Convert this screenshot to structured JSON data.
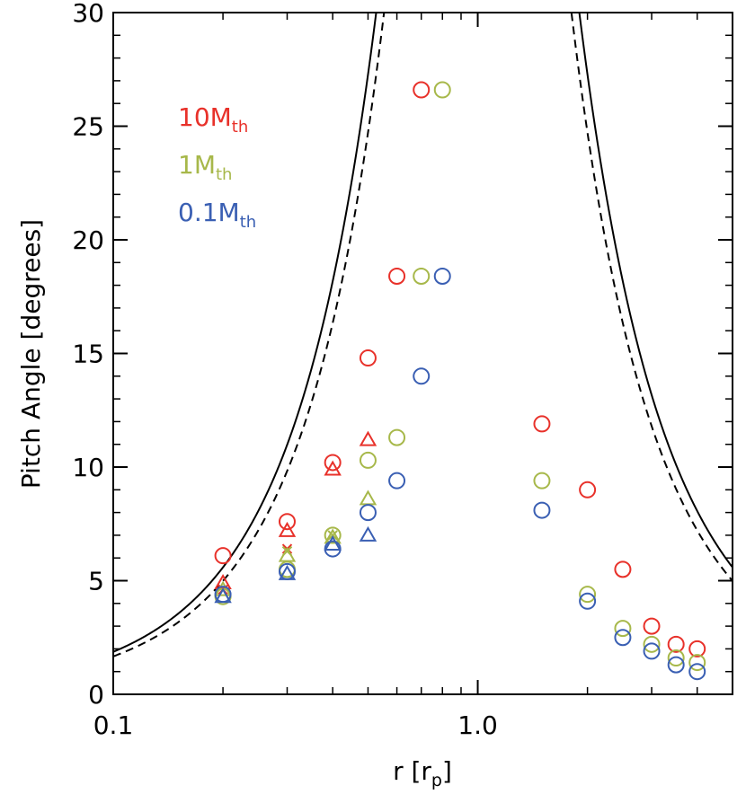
{
  "chart_data": {
    "type": "scatter",
    "xscale": "log",
    "xlim": [
      0.1,
      5
    ],
    "ylim": [
      0,
      30
    ],
    "xlabel": "r [r",
    "xlabel_sub": "p",
    "xlabel_end": "]",
    "ylabel": "Pitch Angle [degrees]",
    "x_ticks": [
      {
        "value": 0.1,
        "label": "0.1"
      },
      {
        "value": 1.0,
        "label": "1.0"
      }
    ],
    "y_ticks": [
      {
        "value": 0,
        "label": "0"
      },
      {
        "value": 5,
        "label": "5"
      },
      {
        "value": 10,
        "label": "10"
      },
      {
        "value": 15,
        "label": "15"
      },
      {
        "value": 20,
        "label": "20"
      },
      {
        "value": 25,
        "label": "25"
      },
      {
        "value": 30,
        "label": "30"
      }
    ],
    "legend": [
      {
        "main": "10M",
        "sub": "th",
        "color": "#e8312a"
      },
      {
        "main": "1M",
        "sub": "th",
        "color": "#a7b84a"
      },
      {
        "main": "0.1M",
        "sub": "th",
        "color": "#3a5fb3"
      }
    ],
    "series": [
      {
        "name": "10Mth",
        "marker": "circle",
        "color": "#e8312a",
        "points": [
          [
            0.2,
            6.1
          ],
          [
            0.3,
            7.6
          ],
          [
            0.4,
            10.2
          ],
          [
            0.5,
            14.8
          ],
          [
            0.6,
            18.4
          ],
          [
            0.7,
            26.6
          ],
          [
            1.5,
            11.9
          ],
          [
            2.0,
            9.0
          ],
          [
            2.5,
            5.5
          ],
          [
            3.0,
            3.0
          ],
          [
            3.5,
            2.2
          ],
          [
            4.0,
            2.0
          ]
        ]
      },
      {
        "name": "10Mth",
        "marker": "triangle",
        "color": "#e8312a",
        "points": [
          [
            0.2,
            4.9
          ],
          [
            0.3,
            7.2
          ],
          [
            0.4,
            9.9
          ],
          [
            0.5,
            11.2
          ]
        ]
      },
      {
        "name": "10Mth",
        "marker": "cross",
        "color": "#e8312a",
        "points": [
          [
            0.2,
            4.6
          ],
          [
            0.3,
            6.4
          ]
        ]
      },
      {
        "name": "1Mth",
        "marker": "circle",
        "color": "#a7b84a",
        "points": [
          [
            0.2,
            4.3
          ],
          [
            0.3,
            5.5
          ],
          [
            0.4,
            7.0
          ],
          [
            0.5,
            10.3
          ],
          [
            0.6,
            11.3
          ],
          [
            0.7,
            18.4
          ],
          [
            0.8,
            26.6
          ],
          [
            1.5,
            9.4
          ],
          [
            2.0,
            4.4
          ],
          [
            2.5,
            2.9
          ],
          [
            3.0,
            2.2
          ],
          [
            3.5,
            1.6
          ],
          [
            4.0,
            1.4
          ]
        ]
      },
      {
        "name": "1Mth",
        "marker": "triangle",
        "color": "#a7b84a",
        "points": [
          [
            0.2,
            4.6
          ],
          [
            0.3,
            6.1
          ],
          [
            0.4,
            6.9
          ],
          [
            0.5,
            8.6
          ]
        ]
      },
      {
        "name": "1Mth",
        "marker": "cross",
        "color": "#a7b84a",
        "points": [
          [
            0.3,
            6.3
          ],
          [
            0.4,
            7.0
          ]
        ]
      },
      {
        "name": "0.1Mth",
        "marker": "circle",
        "color": "#3a5fb3",
        "points": [
          [
            0.2,
            4.4
          ],
          [
            0.3,
            5.4
          ],
          [
            0.4,
            6.4
          ],
          [
            0.5,
            8.0
          ],
          [
            0.6,
            9.4
          ],
          [
            0.7,
            14.0
          ],
          [
            0.8,
            18.4
          ],
          [
            1.5,
            8.1
          ],
          [
            2.0,
            4.1
          ],
          [
            2.5,
            2.5
          ],
          [
            3.0,
            1.9
          ],
          [
            3.5,
            1.3
          ],
          [
            4.0,
            1.0
          ]
        ]
      },
      {
        "name": "0.1Mth",
        "marker": "triangle",
        "color": "#3a5fb3",
        "points": [
          [
            0.2,
            4.3
          ],
          [
            0.3,
            5.3
          ],
          [
            0.4,
            6.6
          ],
          [
            0.5,
            7.0
          ]
        ]
      }
    ],
    "curves": [
      {
        "style": "solid",
        "color": "#000000",
        "exponent": 1.0
      },
      {
        "style": "dashed",
        "color": "#000000",
        "exponent": 1.12
      }
    ]
  }
}
